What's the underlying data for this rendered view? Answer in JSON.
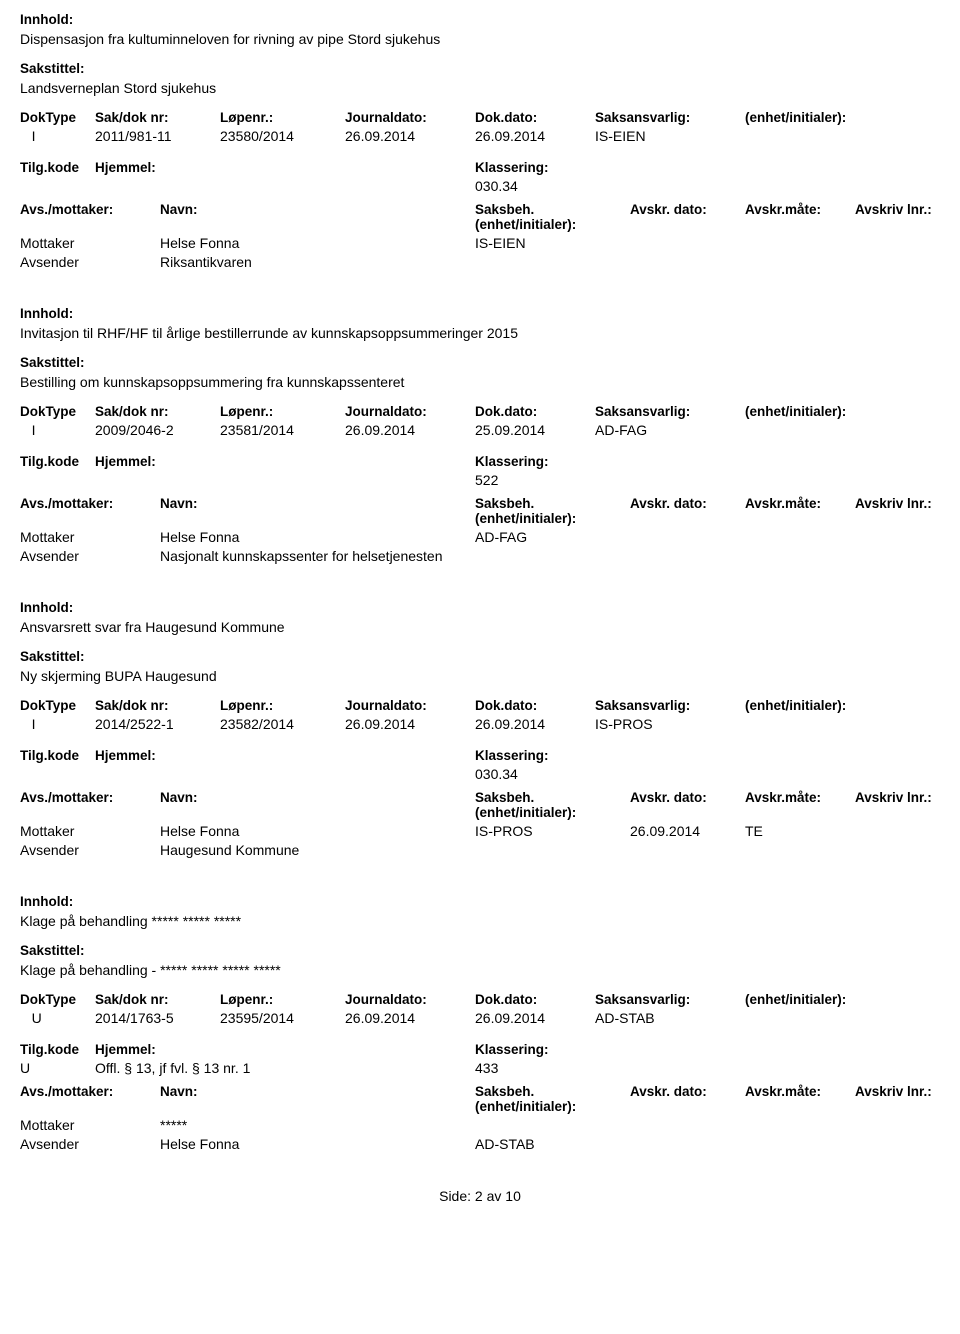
{
  "footer_label": "Side:",
  "footer_page": "2",
  "footer_of": "av",
  "footer_total": "10",
  "labels": {
    "innhold": "Innhold:",
    "sakstittel": "Sakstittel:",
    "doktype": "DokType",
    "sakdok": "Sak/dok nr:",
    "lopenr": "Løpenr.:",
    "journaldato": "Journaldato:",
    "dokdato": "Dok.dato:",
    "saksansvarlig": "Saksansvarlig:",
    "enhet": "(enhet/initialer):",
    "tilgkode": "Tilg.kode",
    "hjemmel": "Hjemmel:",
    "klassering": "Klassering:",
    "avsmottaker": "Avs./mottaker:",
    "navn": "Navn:",
    "saksbeh": "Saksbeh.(enhet/initialer):",
    "avskrdato": "Avskr. dato:",
    "avskrmate": "Avskr.måte:",
    "avskrlnr": "Avskriv lnr.:",
    "mottaker": "Mottaker",
    "avsender": "Avsender"
  },
  "entries": [
    {
      "innhold": "Dispensasjon fra kultuminneloven for rivning av pipe Stord sjukehus",
      "sakstittel": "Landsverneplan Stord sjukehus",
      "doktype": "I",
      "sakdok": "2011/981-11",
      "lopenr": "23580/2014",
      "journaldato": "26.09.2014",
      "dokdato": "26.09.2014",
      "saksansvarlig": "IS-EIEN",
      "tilgkode": "",
      "hjemmel": "",
      "klassering": "030.34",
      "parties": [
        {
          "role": "Mottaker",
          "name": "Helse Fonna",
          "saksbeh": "IS-EIEN",
          "avskrd": "",
          "avskrm": "",
          "avskrl": ""
        },
        {
          "role": "Avsender",
          "name": "Riksantikvaren",
          "saksbeh": "",
          "avskrd": "",
          "avskrm": "",
          "avskrl": ""
        }
      ]
    },
    {
      "innhold": "Invitasjon til RHF/HF til årlige bestillerrunde av kunnskapsoppsummeringer 2015",
      "sakstittel": "Bestilling om kunnskapsoppsummering fra kunnskapssenteret",
      "doktype": "I",
      "sakdok": "2009/2046-2",
      "lopenr": "23581/2014",
      "journaldato": "26.09.2014",
      "dokdato": "25.09.2014",
      "saksansvarlig": "AD-FAG",
      "tilgkode": "",
      "hjemmel": "",
      "klassering": "522",
      "parties": [
        {
          "role": "Mottaker",
          "name": "Helse Fonna",
          "saksbeh": "AD-FAG",
          "avskrd": "",
          "avskrm": "",
          "avskrl": ""
        },
        {
          "role": "Avsender",
          "name": "Nasjonalt kunnskapssenter for helsetjenesten",
          "saksbeh": "",
          "avskrd": "",
          "avskrm": "",
          "avskrl": ""
        }
      ]
    },
    {
      "innhold": "Ansvarsrett svar fra Haugesund Kommune",
      "sakstittel": "Ny skjerming BUPA Haugesund",
      "doktype": "I",
      "sakdok": "2014/2522-1",
      "lopenr": "23582/2014",
      "journaldato": "26.09.2014",
      "dokdato": "26.09.2014",
      "saksansvarlig": "IS-PROS",
      "tilgkode": "",
      "hjemmel": "",
      "klassering": "030.34",
      "parties": [
        {
          "role": "Mottaker",
          "name": "Helse Fonna",
          "saksbeh": "IS-PROS",
          "avskrd": "26.09.2014",
          "avskrm": "TE",
          "avskrl": ""
        },
        {
          "role": "Avsender",
          "name": "Haugesund Kommune",
          "saksbeh": "",
          "avskrd": "",
          "avskrm": "",
          "avskrl": ""
        }
      ]
    },
    {
      "innhold": "Klage på behandling ***** ***** *****",
      "sakstittel": "Klage på behandling - ***** ***** ***** *****",
      "doktype": "U",
      "sakdok": "2014/1763-5",
      "lopenr": "23595/2014",
      "journaldato": "26.09.2014",
      "dokdato": "26.09.2014",
      "saksansvarlig": "AD-STAB",
      "tilgkode": "U",
      "hjemmel": "Offl. § 13, jf fvl. § 13 nr. 1",
      "klassering": "433",
      "parties": [
        {
          "role": "Mottaker",
          "name": "*****",
          "saksbeh": "",
          "avskrd": "",
          "avskrm": "",
          "avskrl": ""
        },
        {
          "role": "Avsender",
          "name": "Helse Fonna",
          "saksbeh": "AD-STAB",
          "avskrd": "",
          "avskrm": "",
          "avskrl": ""
        }
      ]
    }
  ]
}
